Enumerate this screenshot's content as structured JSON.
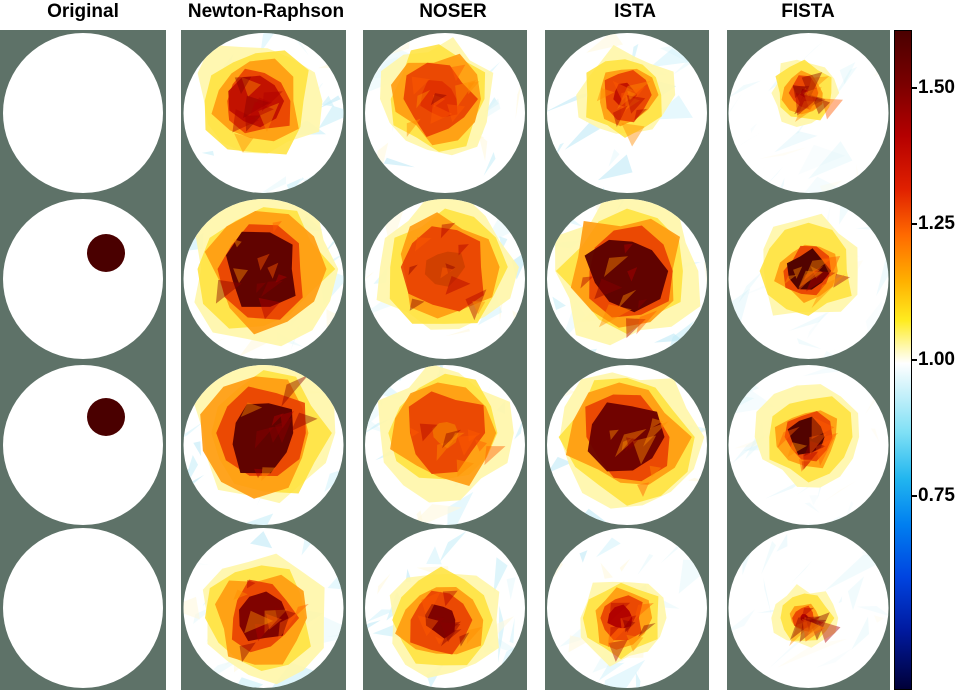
{
  "columns": [
    {
      "title": "Original"
    },
    {
      "title": "Newton-Raphson"
    },
    {
      "title": "NOSER"
    },
    {
      "title": "ISTA"
    },
    {
      "title": "FISTA"
    }
  ],
  "colorbar": {
    "ticks": [
      "1.50",
      "1.25",
      "1.00",
      "0.75"
    ]
  },
  "colors": {
    "background": "#5e7268",
    "divider": "#ffffff",
    "inclusion": "#4a0000"
  }
}
